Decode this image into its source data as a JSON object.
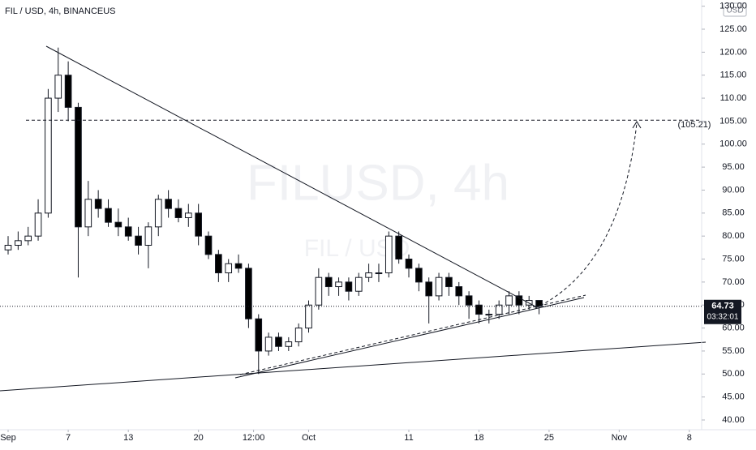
{
  "chart_data": {
    "type": "candlestick",
    "title": "FIL / USD, 4h, BINANCEUS",
    "watermark": "FILUSD, 4h",
    "watermark_sub": "FIL / USD",
    "currency": "USD",
    "x": [
      0,
      1,
      2,
      3,
      4,
      5,
      6,
      7,
      8,
      9,
      10,
      11,
      12,
      13,
      14,
      15,
      16,
      17,
      18,
      19,
      20,
      21,
      22,
      23,
      24,
      25,
      26,
      27,
      28,
      29,
      30,
      31,
      32,
      33,
      34,
      35,
      36,
      37,
      38,
      39,
      40,
      41,
      42,
      43,
      44,
      45,
      46,
      47,
      48,
      49,
      50,
      51,
      52,
      53
    ],
    "open": [
      77,
      78,
      79,
      80,
      85,
      110,
      115,
      108,
      82,
      88,
      86,
      83,
      82,
      80,
      78,
      82,
      88,
      86,
      84,
      85,
      80,
      76,
      72,
      74,
      73,
      62,
      55,
      58,
      56,
      57,
      60,
      65,
      71,
      69,
      70,
      68,
      71,
      72,
      72,
      80,
      75,
      73,
      70,
      67,
      71,
      69,
      67,
      65,
      63,
      63,
      65,
      67,
      65,
      66
    ],
    "high": [
      80,
      81,
      82,
      88,
      112,
      121,
      118,
      109,
      92,
      90,
      88,
      86,
      84,
      82,
      83,
      89,
      90,
      88,
      87,
      87,
      81,
      77,
      75,
      76,
      74,
      63,
      59,
      59,
      58,
      61,
      66,
      73,
      72,
      71,
      71,
      72,
      74,
      74,
      81,
      81,
      76,
      74,
      71,
      72,
      72,
      70,
      68,
      66,
      64,
      66,
      68,
      68,
      67,
      66
    ],
    "low": [
      76,
      77,
      78,
      79,
      84,
      107,
      105,
      71,
      80,
      84,
      82,
      80,
      79,
      76,
      73,
      80,
      84,
      83,
      82,
      78,
      75,
      70,
      70,
      72,
      60,
      50,
      54,
      55,
      55,
      56,
      59,
      64,
      67,
      67,
      66,
      67,
      70,
      70,
      71,
      74,
      71,
      68,
      61,
      66,
      67,
      65,
      62,
      61,
      61,
      62,
      63,
      63,
      64,
      63
    ],
    "close": [
      78,
      79,
      80,
      85,
      110,
      115,
      108,
      82,
      88,
      86,
      83,
      82,
      80,
      78,
      82,
      88,
      86,
      84,
      85,
      80,
      76,
      72,
      74,
      73,
      62,
      55,
      58,
      56,
      57,
      60,
      65,
      71,
      69,
      70,
      68,
      71,
      72,
      72,
      80,
      75,
      73,
      70,
      67,
      71,
      69,
      67,
      65,
      63,
      63,
      65,
      67,
      65,
      66,
      64.73
    ],
    "up_color": "#ffffff",
    "down_color": "#000000",
    "xlim": [
      -0.81,
      69.23
    ],
    "xticks": [
      {
        "value": 0,
        "label": "Sep"
      },
      {
        "value": 6,
        "label": "7"
      },
      {
        "value": 12,
        "label": "13"
      },
      {
        "value": 19,
        "label": "20"
      },
      {
        "value": 24.5,
        "label": "12:00"
      },
      {
        "value": 30,
        "label": "Oct"
      },
      {
        "value": 40,
        "label": "11"
      },
      {
        "value": 47,
        "label": "18"
      },
      {
        "value": 54,
        "label": "25"
      },
      {
        "value": 61,
        "label": "Nov"
      },
      {
        "value": 68,
        "label": "8"
      }
    ],
    "ylim": [
      37.88,
      131.35
    ],
    "yticks": [
      {
        "value": 40,
        "label": "40.00"
      },
      {
        "value": 45,
        "label": "45.00"
      },
      {
        "value": 50,
        "label": "50.00"
      },
      {
        "value": 55,
        "label": "55.00"
      },
      {
        "value": 60,
        "label": "60.00"
      },
      {
        "value": 65,
        "label": "65.00"
      },
      {
        "value": 70,
        "label": "70.00"
      },
      {
        "value": 75,
        "label": "75.00"
      },
      {
        "value": 80,
        "label": "80.00"
      },
      {
        "value": 85,
        "label": "85.00"
      },
      {
        "value": 90,
        "label": "90.00"
      },
      {
        "value": 95,
        "label": "95.00"
      },
      {
        "value": 100,
        "label": "100.00"
      },
      {
        "value": 105,
        "label": "105.00"
      },
      {
        "value": 110,
        "label": "110.00"
      },
      {
        "value": 115,
        "label": "115.00"
      },
      {
        "value": 120,
        "label": "120.00"
      },
      {
        "value": 125,
        "label": "125.00"
      },
      {
        "value": 130,
        "label": "130.00"
      }
    ],
    "target": {
      "value": 105.21,
      "label": "(105.21)"
    },
    "last_price": 64.73,
    "countdown": "03:32:01"
  }
}
